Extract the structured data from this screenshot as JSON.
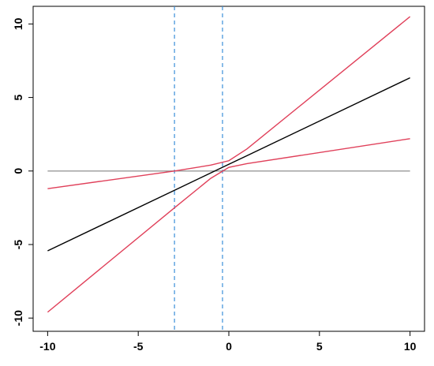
{
  "chart_data": {
    "type": "line",
    "x": [
      -10,
      -3,
      -1,
      0,
      1,
      10
    ],
    "series": [
      {
        "color": "#999999",
        "values": [
          0,
          0,
          0,
          0,
          0,
          0
        ]
      },
      {
        "color": "#000000",
        "values": [
          -5.43,
          -1.31,
          -0.13,
          0.46,
          1.04,
          6.34
        ]
      },
      {
        "color": "#e0405a",
        "values": [
          -1.2,
          0.0,
          0.4,
          0.7,
          1.5,
          10.5
        ]
      },
      {
        "color": "#e0405a",
        "values": [
          -9.6,
          -2.5,
          -0.5,
          0.25,
          0.5,
          2.2
        ]
      }
    ],
    "vlines": [
      -3,
      -0.35
    ],
    "vline_color": "#3b8fd9",
    "xlim": [
      -10.8,
      10.8
    ],
    "ylim": [
      -10.9,
      11.2
    ],
    "xticks": [
      -10,
      -5,
      0,
      5,
      10
    ],
    "yticks": [
      -10,
      -5,
      0,
      5,
      10
    ]
  }
}
